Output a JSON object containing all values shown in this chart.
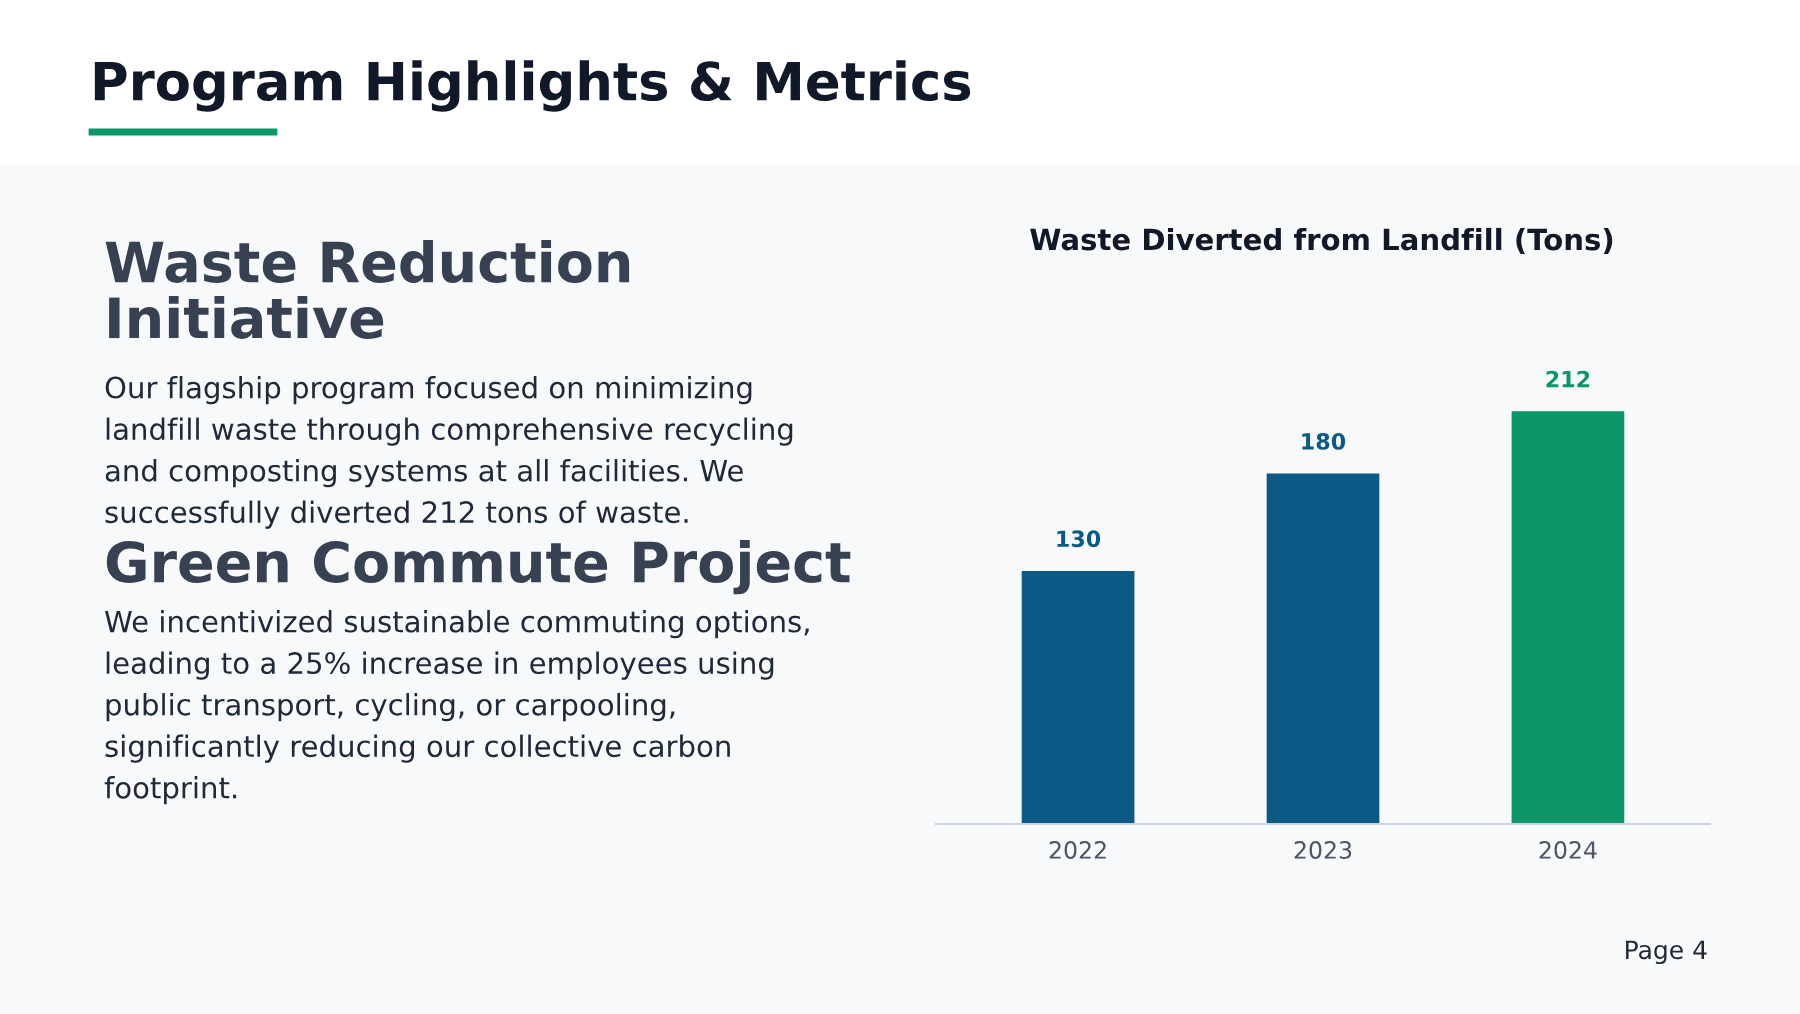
{
  "chart_data": [
    {
      "type": "other",
      "title": "Program Highlights & Metrics",
      "annotations": [
        "Waste Reduction\nInitiative",
        "Our flagship program focused on minimizing\nlandfill waste through comprehensive recycling\nand composting systems at all facilities. We\nsuccessfully diverted 212 tons of waste.",
        "Green Commute Project",
        "We incentivized sustainable commuting options,\nleading to a 25% increase in employees using\npublic transport, cycling, or carpooling,\nsignificantly reducing our collective carbon\nfootprint.",
        "Page 4"
      ]
    },
    {
      "type": "bar",
      "title": "Waste Diverted from Landfill (Tons)",
      "categories": [
        "2022",
        "2023",
        "2024"
      ],
      "values": [
        130,
        180,
        212
      ],
      "colors": [
        "#0b5a85",
        "#0b5a85",
        "#0a9669"
      ],
      "data_labels": true
    }
  ]
}
